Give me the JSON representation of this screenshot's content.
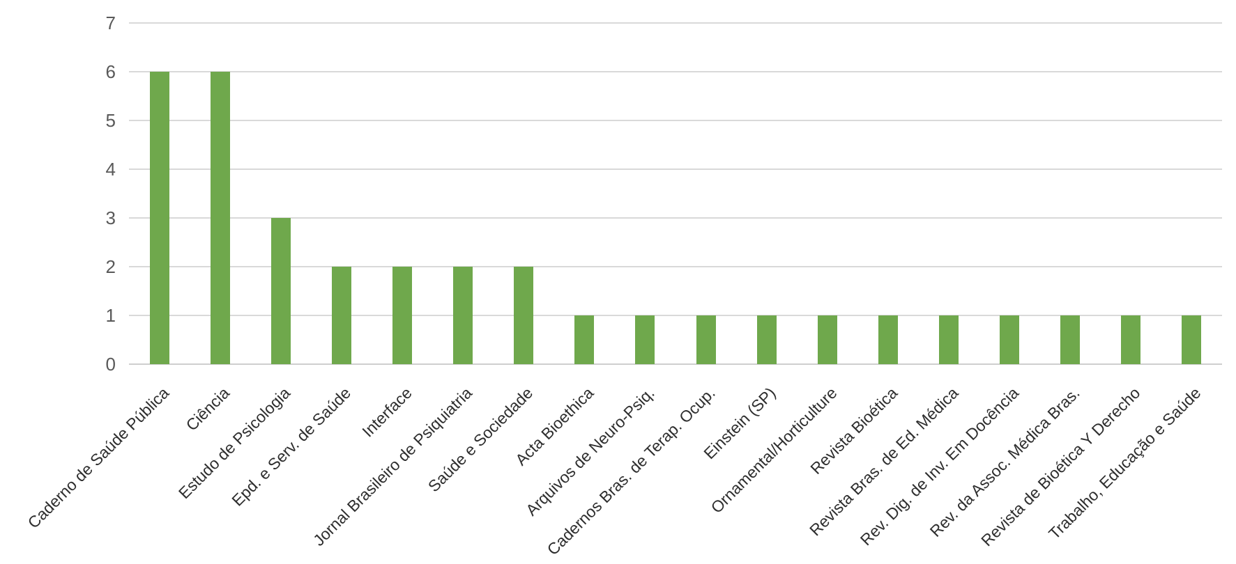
{
  "chart_data": {
    "type": "bar",
    "title": "",
    "xlabel": "",
    "ylabel": "",
    "categories": [
      "Caderno de Saúde Pública",
      "Ciência",
      "Estudo de Psicologia",
      "Epd. e Serv. de Saúde",
      "Interface",
      "Jornal Brasileiro de Psiquiatria",
      "Saúde e Sociedade",
      "Acta Bioethica",
      "Arquivos de Neuro-Psiq.",
      "Cadernos Bras. de Terap. Ocup.",
      "Einstein (SP)",
      "Ornamental/Horticulture",
      "Revista Bioética",
      "Revista Bras. de Ed. Médica",
      "Rev. Dig. de Inv. Em Docência",
      "Rev. da Assoc. Médica Bras.",
      "Revista de Bioética Y Derecho",
      "Trabalho, Educação e Saúde"
    ],
    "values": [
      6,
      6,
      3,
      2,
      2,
      2,
      2,
      1,
      1,
      1,
      1,
      1,
      1,
      1,
      1,
      1,
      1,
      1
    ],
    "ylim": [
      0,
      7
    ],
    "yticks": [
      0,
      1,
      2,
      3,
      4,
      5,
      6,
      7
    ],
    "grid": true,
    "legend": false,
    "xtick_rotation_deg": -45,
    "colors": {
      "bar": "#6FA84C",
      "gridline": "#D9D9D9",
      "baseline": "#CFCFCF",
      "ytick_text": "#595959",
      "xtick_text": "#2E2E2E",
      "background": "#FFFFFF"
    }
  }
}
